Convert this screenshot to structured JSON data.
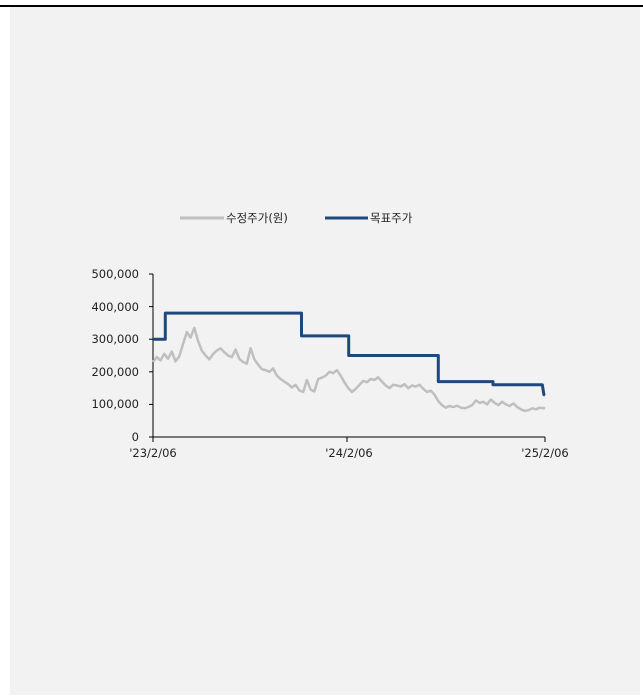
{
  "chart_data": {
    "type": "line",
    "x_ticks": [
      "'23/2/06",
      "'24/2/06",
      "'25/2/06"
    ],
    "ylim": [
      0,
      500000
    ],
    "y_ticks": [
      "500,000",
      "400,000",
      "300,000",
      "200,000",
      "100,000",
      "0"
    ],
    "y_tick_values": [
      500000,
      400000,
      300000,
      200000,
      100000,
      0
    ],
    "legend_position": "top-center",
    "series": [
      {
        "name": "수정주가(원)",
        "color": "#bfbfbf",
        "points": [
          [
            "2023-02-06",
            230000
          ],
          [
            "2023-02-13",
            245000
          ],
          [
            "2023-02-20",
            235000
          ],
          [
            "2023-02-27",
            255000
          ],
          [
            "2023-03-06",
            240000
          ],
          [
            "2023-03-13",
            262000
          ],
          [
            "2023-03-20",
            232000
          ],
          [
            "2023-03-27",
            248000
          ],
          [
            "2023-04-03",
            285000
          ],
          [
            "2023-04-10",
            322000
          ],
          [
            "2023-04-17",
            305000
          ],
          [
            "2023-04-24",
            335000
          ],
          [
            "2023-05-01",
            295000
          ],
          [
            "2023-05-08",
            265000
          ],
          [
            "2023-05-15",
            250000
          ],
          [
            "2023-05-22",
            238000
          ],
          [
            "2023-05-29",
            255000
          ],
          [
            "2023-06-05",
            265000
          ],
          [
            "2023-06-12",
            272000
          ],
          [
            "2023-06-19",
            260000
          ],
          [
            "2023-06-26",
            250000
          ],
          [
            "2023-07-03",
            245000
          ],
          [
            "2023-07-10",
            268000
          ],
          [
            "2023-07-17",
            240000
          ],
          [
            "2023-07-24",
            230000
          ],
          [
            "2023-07-31",
            225000
          ],
          [
            "2023-08-07",
            272000
          ],
          [
            "2023-08-14",
            238000
          ],
          [
            "2023-08-21",
            222000
          ],
          [
            "2023-08-28",
            208000
          ],
          [
            "2023-09-04",
            205000
          ],
          [
            "2023-09-11",
            200000
          ],
          [
            "2023-09-18",
            210000
          ],
          [
            "2023-09-25",
            188000
          ],
          [
            "2023-10-02",
            178000
          ],
          [
            "2023-10-09",
            170000
          ],
          [
            "2023-10-16",
            162000
          ],
          [
            "2023-10-23",
            152000
          ],
          [
            "2023-10-30",
            160000
          ],
          [
            "2023-11-06",
            143000
          ],
          [
            "2023-11-13",
            138000
          ],
          [
            "2023-11-20",
            175000
          ],
          [
            "2023-11-27",
            145000
          ],
          [
            "2023-12-04",
            140000
          ],
          [
            "2023-12-11",
            178000
          ],
          [
            "2023-12-18",
            182000
          ],
          [
            "2023-12-25",
            188000
          ],
          [
            "2024-01-01",
            200000
          ],
          [
            "2024-01-08",
            196000
          ],
          [
            "2024-01-15",
            205000
          ],
          [
            "2024-01-22",
            188000
          ],
          [
            "2024-01-29",
            168000
          ],
          [
            "2024-02-05",
            150000
          ],
          [
            "2024-02-12",
            138000
          ],
          [
            "2024-02-19",
            148000
          ],
          [
            "2024-02-26",
            160000
          ],
          [
            "2024-03-04",
            172000
          ],
          [
            "2024-03-11",
            168000
          ],
          [
            "2024-03-18",
            178000
          ],
          [
            "2024-03-25",
            175000
          ],
          [
            "2024-04-01",
            183000
          ],
          [
            "2024-04-08",
            170000
          ],
          [
            "2024-04-15",
            158000
          ],
          [
            "2024-04-22",
            150000
          ],
          [
            "2024-04-29",
            160000
          ],
          [
            "2024-05-06",
            158000
          ],
          [
            "2024-05-13",
            155000
          ],
          [
            "2024-05-20",
            162000
          ],
          [
            "2024-05-27",
            150000
          ],
          [
            "2024-06-03",
            158000
          ],
          [
            "2024-06-10",
            155000
          ],
          [
            "2024-06-17",
            160000
          ],
          [
            "2024-06-24",
            148000
          ],
          [
            "2024-07-01",
            138000
          ],
          [
            "2024-07-08",
            142000
          ],
          [
            "2024-07-15",
            130000
          ],
          [
            "2024-07-22",
            110000
          ],
          [
            "2024-07-29",
            98000
          ],
          [
            "2024-08-05",
            90000
          ],
          [
            "2024-08-12",
            95000
          ],
          [
            "2024-08-19",
            92000
          ],
          [
            "2024-08-26",
            96000
          ],
          [
            "2024-09-02",
            90000
          ],
          [
            "2024-09-09",
            88000
          ],
          [
            "2024-09-16",
            92000
          ],
          [
            "2024-09-23",
            98000
          ],
          [
            "2024-09-30",
            112000
          ],
          [
            "2024-10-07",
            105000
          ],
          [
            "2024-10-14",
            108000
          ],
          [
            "2024-10-21",
            100000
          ],
          [
            "2024-10-28",
            115000
          ],
          [
            "2024-11-04",
            105000
          ],
          [
            "2024-11-11",
            98000
          ],
          [
            "2024-11-18",
            108000
          ],
          [
            "2024-11-25",
            100000
          ],
          [
            "2024-12-02",
            95000
          ],
          [
            "2024-12-09",
            103000
          ],
          [
            "2024-12-16",
            92000
          ],
          [
            "2024-12-23",
            85000
          ],
          [
            "2024-12-30",
            80000
          ],
          [
            "2025-01-06",
            82000
          ],
          [
            "2025-01-13",
            88000
          ],
          [
            "2025-01-20",
            85000
          ],
          [
            "2025-01-27",
            90000
          ],
          [
            "2025-02-06",
            88000
          ]
        ]
      },
      {
        "name": "목표주가",
        "color": "#1f497d",
        "points": [
          [
            "2023-02-06",
            300000
          ],
          [
            "2023-03-01",
            300000
          ],
          [
            "2023-03-01",
            380000
          ],
          [
            "2023-11-10",
            380000
          ],
          [
            "2023-11-10",
            310000
          ],
          [
            "2024-02-06",
            310000
          ],
          [
            "2024-02-06",
            250000
          ],
          [
            "2024-07-22",
            250000
          ],
          [
            "2024-07-22",
            170000
          ],
          [
            "2024-11-01",
            170000
          ],
          [
            "2024-11-01",
            160000
          ],
          [
            "2025-02-01",
            160000
          ],
          [
            "2025-02-04",
            130000
          ],
          [
            "2025-02-06",
            128000
          ]
        ]
      }
    ]
  }
}
